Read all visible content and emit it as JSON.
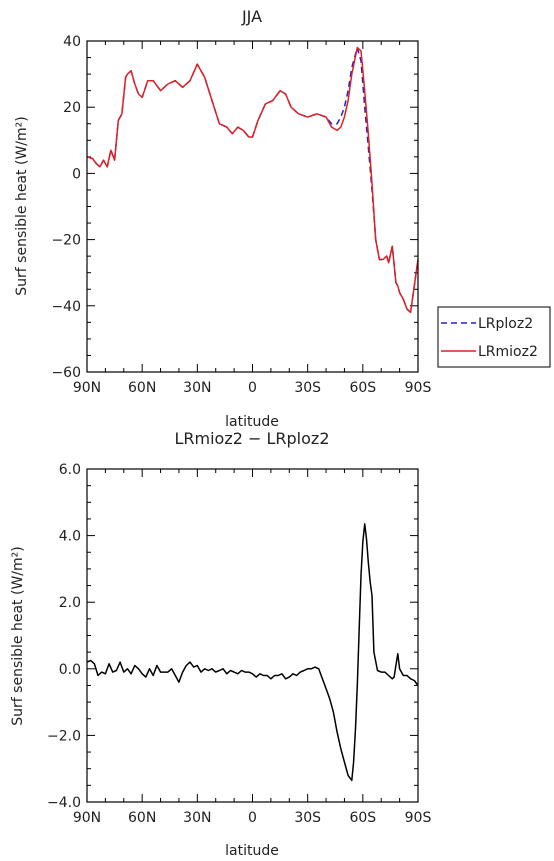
{
  "chart_data": [
    {
      "type": "line",
      "title": "JJA",
      "xlabel": "latitude",
      "ylabel": "Surf sensible heat (W/m²)",
      "ylim": [
        -60,
        40
      ],
      "y_ticks": [
        "40",
        "20",
        "0",
        "−20",
        "−40",
        "−60"
      ],
      "x_ticks": [
        "90N",
        "60N",
        "30N",
        "0",
        "30S",
        "60S",
        "90S"
      ],
      "legend_position": "right",
      "series": [
        {
          "name": "LRploz2",
          "color": "#2222cc",
          "style": "dashed",
          "x": [
            90,
            87,
            85,
            83,
            81,
            79,
            77,
            75,
            73,
            71,
            69,
            68,
            66,
            64,
            62,
            60,
            57,
            54,
            50,
            46,
            42,
            38,
            34,
            30,
            26,
            22,
            18,
            14,
            11,
            8,
            5,
            2,
            0,
            -3,
            -7,
            -11,
            -15,
            -18,
            -21,
            -25,
            -30,
            -35,
            -40,
            -43,
            -46,
            -48,
            -50,
            -52,
            -54,
            -57,
            -59,
            -61,
            -63,
            -65,
            -67,
            -69,
            -71,
            -73,
            -74,
            -76,
            -78,
            -79,
            -80,
            -82,
            -84,
            -86,
            -88,
            -90
          ],
          "values": [
            5,
            4.5,
            3,
            2,
            4,
            2,
            7,
            4,
            16,
            18,
            29,
            30,
            31,
            27,
            24,
            23,
            28,
            28,
            25,
            27,
            28,
            26,
            28,
            33,
            29,
            22,
            15,
            14,
            12,
            14,
            13,
            11,
            11,
            16,
            21,
            22,
            25,
            24,
            20,
            18,
            17,
            18,
            17,
            15,
            15,
            17,
            20,
            25,
            32,
            38,
            34,
            20,
            8,
            -5,
            -20,
            -26,
            -26,
            -25,
            -27,
            -22,
            -33,
            -34,
            -36,
            -38,
            -41,
            -42,
            -34,
            -26
          ]
        },
        {
          "name": "LRmioz2",
          "color": "#dd2222",
          "style": "solid",
          "x": [
            90,
            87,
            85,
            83,
            81,
            79,
            77,
            75,
            73,
            71,
            69,
            68,
            66,
            64,
            62,
            60,
            57,
            54,
            50,
            46,
            42,
            38,
            34,
            30,
            26,
            22,
            18,
            14,
            11,
            8,
            5,
            2,
            0,
            -3,
            -7,
            -11,
            -15,
            -18,
            -21,
            -25,
            -30,
            -35,
            -40,
            -43,
            -46,
            -48,
            -50,
            -52,
            -54,
            -57,
            -59,
            -61,
            -63,
            -65,
            -67,
            -69,
            -71,
            -73,
            -74,
            -76,
            -78,
            -79,
            -80,
            -82,
            -84,
            -86,
            -88,
            -90
          ],
          "values": [
            5,
            4.5,
            3,
            2,
            4,
            2,
            7,
            4,
            16,
            18,
            29,
            30,
            31,
            27,
            24,
            23,
            28,
            28,
            25,
            27,
            28,
            26,
            28,
            33,
            29,
            22,
            15,
            14,
            12,
            14,
            13,
            11,
            11,
            16,
            21,
            22,
            25,
            24,
            20,
            18,
            17,
            18,
            17,
            14,
            13,
            14,
            17,
            22,
            30,
            38,
            37,
            25,
            12,
            -3,
            -20,
            -26,
            -26,
            -25,
            -27,
            -22,
            -33,
            -34,
            -36,
            -38,
            -41,
            -42,
            -34,
            -26
          ]
        }
      ]
    },
    {
      "type": "line",
      "title": "LRmioz2 − LRploz2",
      "xlabel": "latitude",
      "ylabel": "Surf sensible heat (W/m²)",
      "ylim": [
        -4,
        6
      ],
      "y_ticks": [
        "6.0",
        "4.0",
        "2.0",
        "0.0",
        "−2.0",
        "−4.0"
      ],
      "x_ticks": [
        "90N",
        "60N",
        "30N",
        "0",
        "30S",
        "60S",
        "90S"
      ],
      "series": [
        {
          "name": "",
          "color": "#000000",
          "style": "solid",
          "x": [
            90,
            88,
            86,
            84,
            82,
            80,
            78,
            76,
            74,
            72,
            70,
            68,
            66,
            64,
            62,
            60,
            58,
            56,
            54,
            52,
            50,
            48,
            46,
            44,
            42,
            40,
            38,
            36,
            34,
            32,
            30,
            28,
            26,
            24,
            22,
            20,
            18,
            16,
            14,
            12,
            10,
            8,
            6,
            4,
            2,
            0,
            -2,
            -4,
            -6,
            -8,
            -10,
            -12,
            -14,
            -16,
            -18,
            -20,
            -22,
            -24,
            -26,
            -28,
            -30,
            -32,
            -34,
            -36,
            -38,
            -40,
            -42,
            -44,
            -46,
            -48,
            -50,
            -52,
            -54,
            -55,
            -56,
            -57,
            -58,
            -59,
            -60,
            -61,
            -62,
            -63,
            -64,
            -65,
            -66,
            -68,
            -70,
            -72,
            -74,
            -76,
            -77,
            -78,
            -79,
            -80,
            -82,
            -84,
            -86,
            -88,
            -90
          ],
          "values": [
            0.2,
            0.25,
            0.15,
            -0.2,
            -0.1,
            -0.15,
            0.15,
            -0.1,
            -0.05,
            0.2,
            -0.1,
            0.0,
            -0.15,
            0.1,
            0.0,
            -0.15,
            -0.25,
            0.0,
            -0.2,
            0.1,
            -0.1,
            -0.1,
            -0.1,
            0.0,
            -0.2,
            -0.4,
            -0.1,
            0.1,
            0.2,
            0.05,
            0.1,
            -0.1,
            0.0,
            -0.05,
            0.0,
            -0.1,
            -0.05,
            0.0,
            -0.15,
            -0.05,
            -0.1,
            -0.15,
            -0.05,
            -0.1,
            -0.1,
            -0.15,
            -0.25,
            -0.15,
            -0.2,
            -0.2,
            -0.3,
            -0.2,
            -0.2,
            -0.15,
            -0.3,
            -0.25,
            -0.15,
            -0.2,
            -0.1,
            -0.05,
            0.0,
            0.0,
            0.05,
            0.0,
            -0.3,
            -0.6,
            -0.9,
            -1.3,
            -1.9,
            -2.4,
            -2.8,
            -3.2,
            -3.35,
            -2.8,
            -1.8,
            -0.5,
            1.2,
            2.8,
            3.8,
            4.35,
            3.9,
            3.2,
            2.6,
            2.2,
            0.5,
            -0.05,
            -0.1,
            -0.1,
            -0.2,
            -0.3,
            -0.25,
            0.1,
            0.45,
            0.0,
            -0.2,
            -0.2,
            -0.3,
            -0.35,
            -0.5
          ]
        }
      ]
    }
  ]
}
